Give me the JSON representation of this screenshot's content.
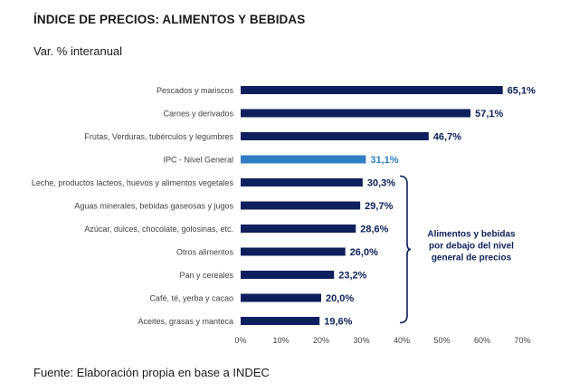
{
  "title": "ÍNDICE DE PRECIOS: ALIMENTOS Y BEBIDAS",
  "subtitle": "Var. % interanual",
  "source": "Fuente: Elaboración propia en base a INDEC",
  "colors": {
    "bar": "#0d1f5c",
    "highlight": "#2f7fc1",
    "label": "#0d1f5c"
  },
  "chart_data": {
    "type": "bar",
    "orientation": "horizontal",
    "title": "ÍNDICE DE PRECIOS: ALIMENTOS Y BEBIDAS",
    "subtitle": "Var. % interanual",
    "xlabel": "",
    "ylabel": "",
    "xlim": [
      0,
      70
    ],
    "ticks": [
      0,
      10,
      20,
      30,
      40,
      50,
      60,
      70
    ],
    "tick_labels": [
      "0%",
      "10%",
      "20%",
      "30%",
      "40%",
      "50%",
      "60%",
      "70%"
    ],
    "categories": [
      "Pescados y mariscos",
      "Carnes y derivados",
      "Frutas, Verduras, tubérculos y legumbres",
      "IPC - Nivel General",
      "Leche, productos lácteos, huevos y alimentos vegetales",
      "Aguas minerales, bebidas gaseosas y jugos",
      "Azúcar, dulces, chocolate, golosinas, etc.",
      "Otros alimentos",
      "Pan y cereales",
      "Café, té, yerba y cacao",
      "Aceites, grasas y manteca"
    ],
    "values": [
      65.1,
      57.1,
      46.7,
      31.1,
      30.3,
      29.7,
      28.6,
      26.0,
      23.2,
      20.0,
      19.6
    ],
    "value_labels": [
      "65,1%",
      "57,1%",
      "46,7%",
      "31,1%",
      "30,3%",
      "29,7%",
      "28,6%",
      "26,0%",
      "23,2%",
      "20,0%",
      "19,6%"
    ],
    "highlight_index": 3,
    "annotation": {
      "lines": [
        "Alimentos y bebidas",
        "por debajo del nivel",
        "general de precios"
      ],
      "range": [
        4,
        10
      ]
    }
  }
}
